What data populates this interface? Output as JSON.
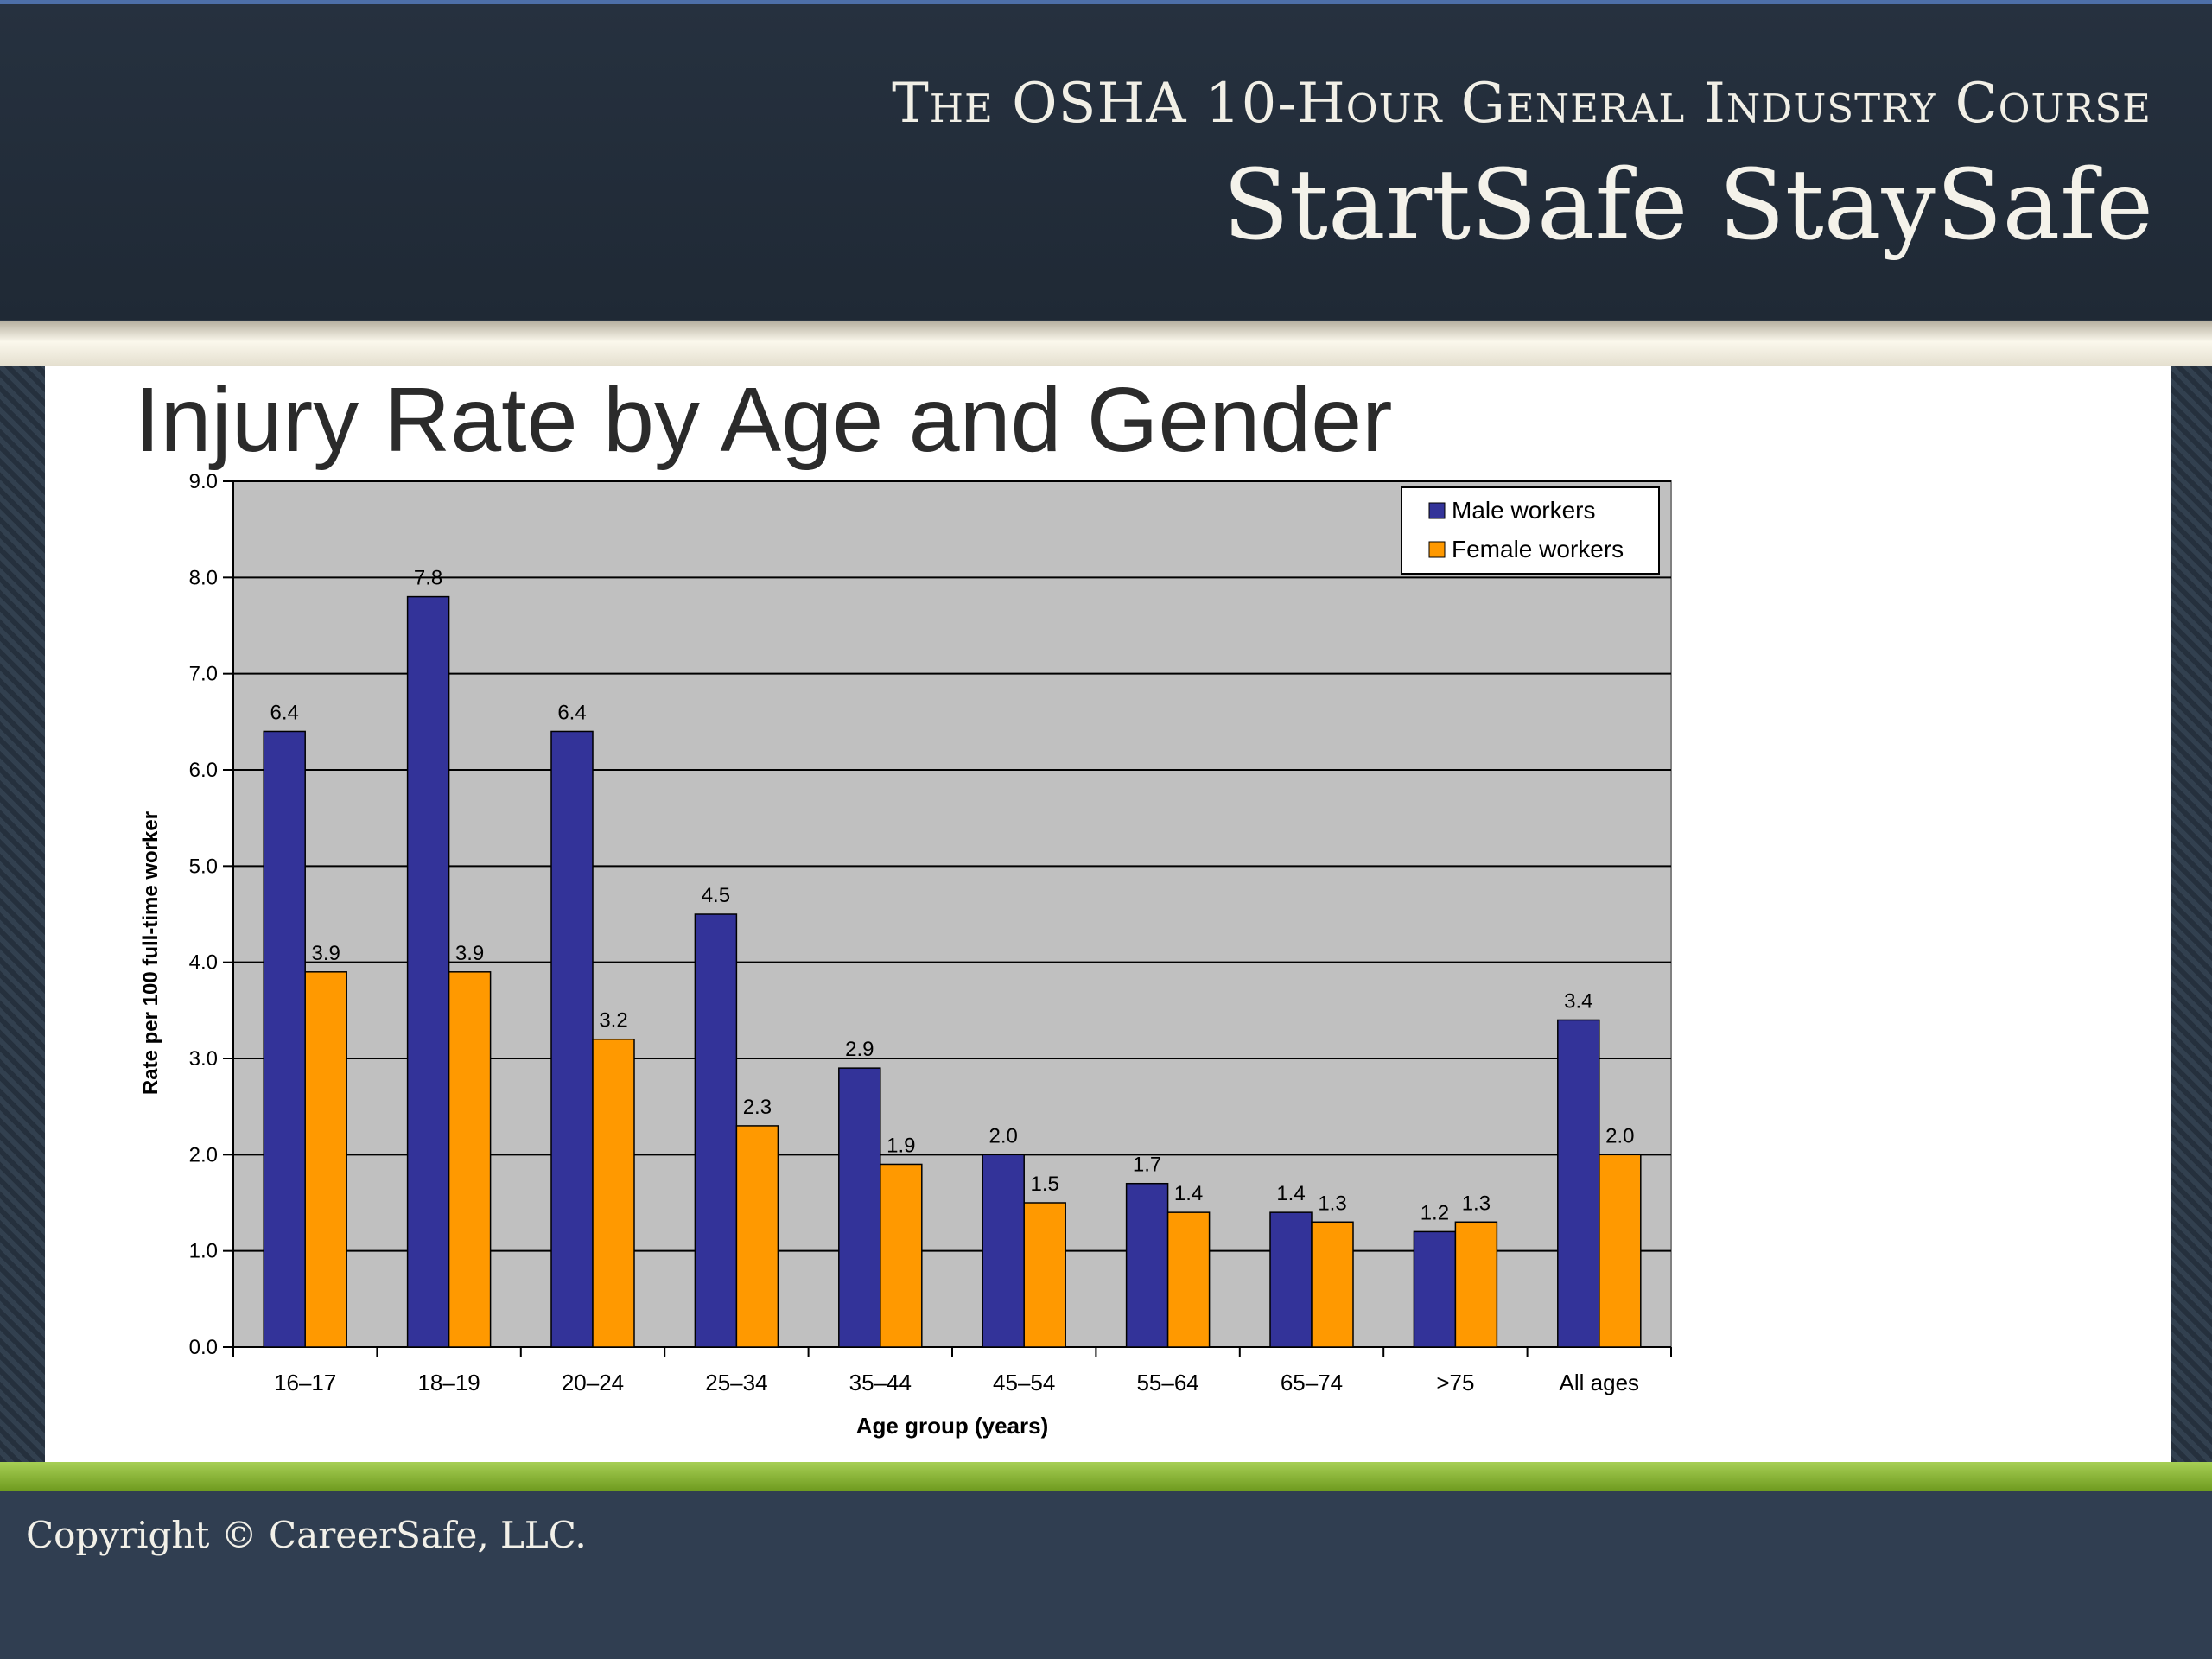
{
  "header": {
    "course_title": "The OSHA 10-Hour General Industry Course",
    "brand": "StartSafe StaySafe"
  },
  "slide": {
    "title": "Injury Rate by Age and Gender"
  },
  "footer": {
    "copyright": "Copyright © CareerSafe, LLC."
  },
  "colors": {
    "male": "#333399",
    "female": "#ff9900",
    "plot_background": "#c0c0c0"
  },
  "chart_data": {
    "type": "bar",
    "title": "",
    "xlabel": "Age group (years)",
    "ylabel": "Rate per 100 full-time worker",
    "categories": [
      "16–17",
      "18–19",
      "20–24",
      "25–34",
      "35–44",
      "45–54",
      "55–64",
      "65–74",
      ">75",
      "All ages"
    ],
    "series": [
      {
        "name": "Male workers",
        "values": [
          6.4,
          7.8,
          6.4,
          4.5,
          2.9,
          2.0,
          1.7,
          1.4,
          1.2,
          3.4
        ],
        "color": "#333399"
      },
      {
        "name": "Female workers",
        "values": [
          3.9,
          3.9,
          3.2,
          2.3,
          1.9,
          1.5,
          1.4,
          1.3,
          1.3,
          2.0
        ],
        "color": "#ff9900"
      }
    ],
    "ylim": [
      0,
      9
    ],
    "yticks": [
      "0.0",
      "1.0",
      "2.0",
      "3.0",
      "4.0",
      "5.0",
      "6.0",
      "7.0",
      "8.0",
      "9.0"
    ],
    "grid": true,
    "legend": "top-right"
  }
}
